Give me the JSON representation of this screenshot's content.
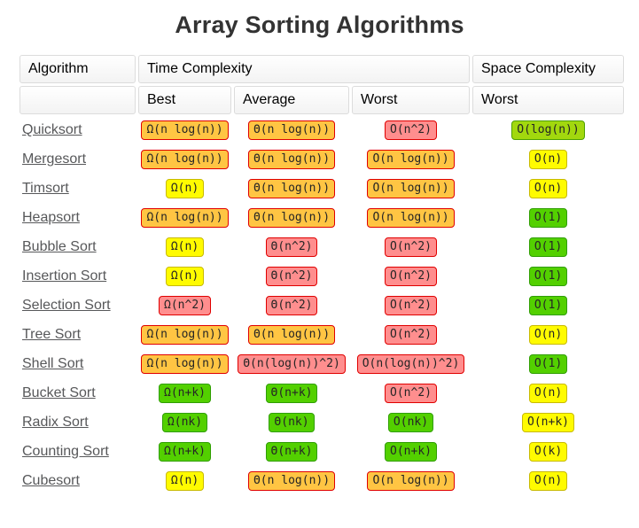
{
  "title": "Array Sorting Algorithms",
  "colors": {
    "title": "#333333",
    "link": "#57585a",
    "levels": {
      "orange": {
        "bg": "#FFC543",
        "border": "#E00000"
      },
      "red": {
        "bg": "#FF8E8E",
        "border": "#E00000"
      },
      "yellow": {
        "bg": "#FFFB00",
        "border": "#C8BA00"
      },
      "green": {
        "bg": "#53D000",
        "border": "#2F9E00"
      },
      "yellowgreen": {
        "bg": "#A2D80E",
        "border": "#4DA000"
      }
    }
  },
  "table": {
    "header_row1": {
      "algorithm": "Algorithm",
      "time": "Time Complexity",
      "space": "Space Complexity"
    },
    "header_row2": {
      "blank": "",
      "best": "Best",
      "average": "Average",
      "worst": "Worst",
      "space_worst": "Worst"
    },
    "rows": [
      {
        "name": "Quicksort",
        "cells": [
          {
            "text": "Ω(n log(n))",
            "level": "orange"
          },
          {
            "text": "Θ(n log(n))",
            "level": "orange"
          },
          {
            "text": "O(n^2)",
            "level": "red"
          },
          {
            "text": "O(log(n))",
            "level": "yellowgreen"
          }
        ]
      },
      {
        "name": "Mergesort",
        "cells": [
          {
            "text": "Ω(n log(n))",
            "level": "orange"
          },
          {
            "text": "Θ(n log(n))",
            "level": "orange"
          },
          {
            "text": "O(n log(n))",
            "level": "orange"
          },
          {
            "text": "O(n)",
            "level": "yellow"
          }
        ]
      },
      {
        "name": "Timsort",
        "cells": [
          {
            "text": "Ω(n)",
            "level": "yellow"
          },
          {
            "text": "Θ(n log(n))",
            "level": "orange"
          },
          {
            "text": "O(n log(n))",
            "level": "orange"
          },
          {
            "text": "O(n)",
            "level": "yellow"
          }
        ]
      },
      {
        "name": "Heapsort",
        "cells": [
          {
            "text": "Ω(n log(n))",
            "level": "orange"
          },
          {
            "text": "Θ(n log(n))",
            "level": "orange"
          },
          {
            "text": "O(n log(n))",
            "level": "orange"
          },
          {
            "text": "O(1)",
            "level": "green"
          }
        ]
      },
      {
        "name": "Bubble Sort",
        "cells": [
          {
            "text": "Ω(n)",
            "level": "yellow"
          },
          {
            "text": "Θ(n^2)",
            "level": "red"
          },
          {
            "text": "O(n^2)",
            "level": "red"
          },
          {
            "text": "O(1)",
            "level": "green"
          }
        ]
      },
      {
        "name": "Insertion Sort",
        "cells": [
          {
            "text": "Ω(n)",
            "level": "yellow"
          },
          {
            "text": "Θ(n^2)",
            "level": "red"
          },
          {
            "text": "O(n^2)",
            "level": "red"
          },
          {
            "text": "O(1)",
            "level": "green"
          }
        ]
      },
      {
        "name": "Selection Sort",
        "cells": [
          {
            "text": "Ω(n^2)",
            "level": "red"
          },
          {
            "text": "Θ(n^2)",
            "level": "red"
          },
          {
            "text": "O(n^2)",
            "level": "red"
          },
          {
            "text": "O(1)",
            "level": "green"
          }
        ]
      },
      {
        "name": "Tree Sort",
        "cells": [
          {
            "text": "Ω(n log(n))",
            "level": "orange"
          },
          {
            "text": "Θ(n log(n))",
            "level": "orange"
          },
          {
            "text": "O(n^2)",
            "level": "red"
          },
          {
            "text": "O(n)",
            "level": "yellow"
          }
        ]
      },
      {
        "name": "Shell Sort",
        "cells": [
          {
            "text": "Ω(n log(n))",
            "level": "orange"
          },
          {
            "text": "Θ(n(log(n))^2)",
            "level": "red"
          },
          {
            "text": "O(n(log(n))^2)",
            "level": "red"
          },
          {
            "text": "O(1)",
            "level": "green"
          }
        ]
      },
      {
        "name": "Bucket Sort",
        "cells": [
          {
            "text": "Ω(n+k)",
            "level": "green"
          },
          {
            "text": "Θ(n+k)",
            "level": "green"
          },
          {
            "text": "O(n^2)",
            "level": "red"
          },
          {
            "text": "O(n)",
            "level": "yellow"
          }
        ]
      },
      {
        "name": "Radix Sort",
        "cells": [
          {
            "text": "Ω(nk)",
            "level": "green"
          },
          {
            "text": "Θ(nk)",
            "level": "green"
          },
          {
            "text": "O(nk)",
            "level": "green"
          },
          {
            "text": "O(n+k)",
            "level": "yellow"
          }
        ]
      },
      {
        "name": "Counting Sort",
        "cells": [
          {
            "text": "Ω(n+k)",
            "level": "green"
          },
          {
            "text": "Θ(n+k)",
            "level": "green"
          },
          {
            "text": "O(n+k)",
            "level": "green"
          },
          {
            "text": "O(k)",
            "level": "yellow"
          }
        ]
      },
      {
        "name": "Cubesort",
        "cells": [
          {
            "text": "Ω(n)",
            "level": "yellow"
          },
          {
            "text": "Θ(n log(n))",
            "level": "orange"
          },
          {
            "text": "O(n log(n))",
            "level": "orange"
          },
          {
            "text": "O(n)",
            "level": "yellow"
          }
        ]
      }
    ]
  }
}
